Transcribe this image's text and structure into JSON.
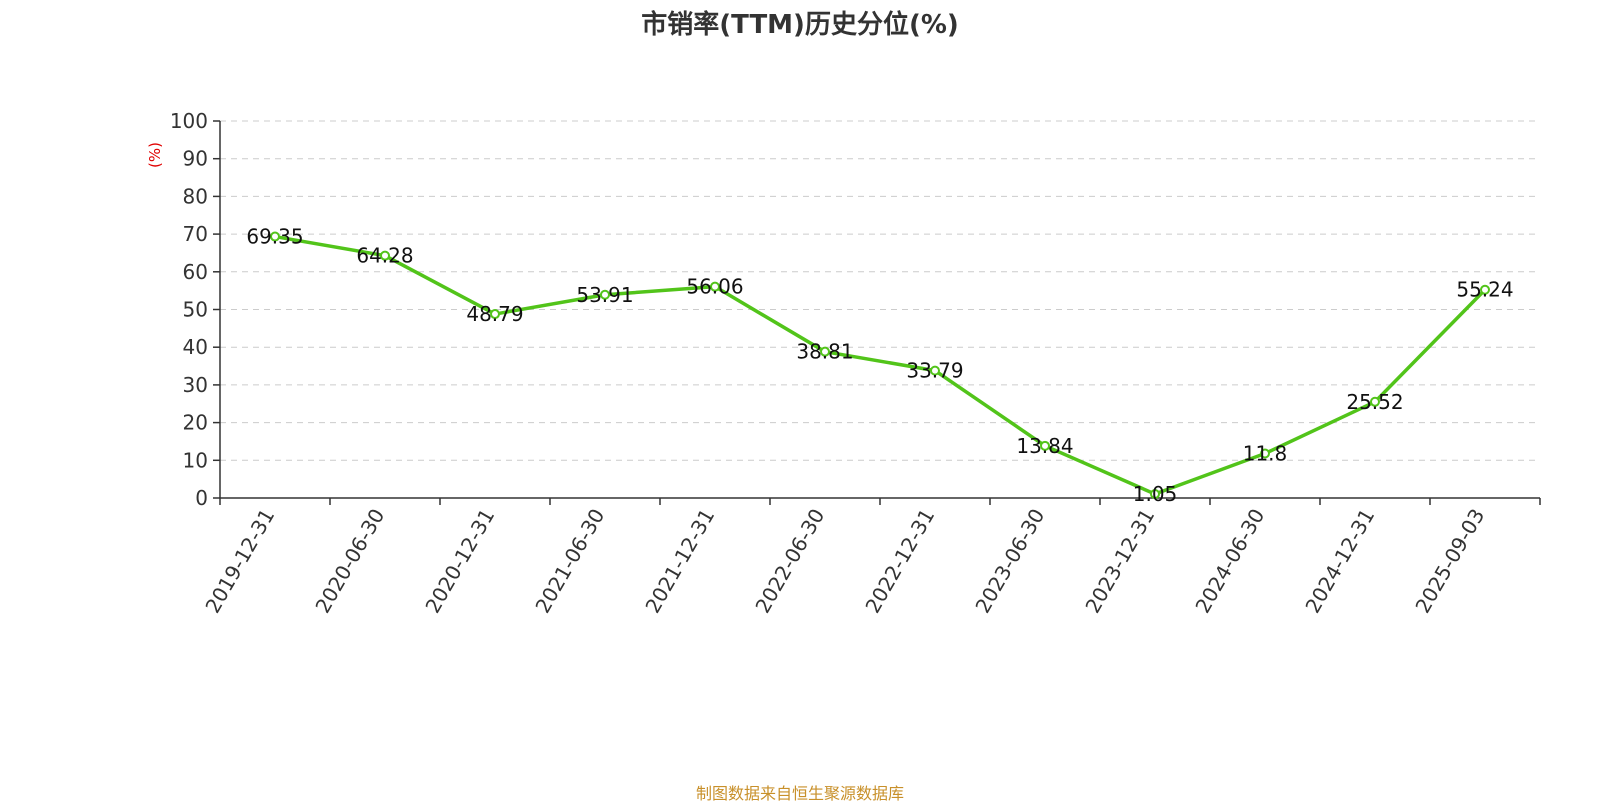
{
  "chart_data": {
    "type": "line",
    "title": "市销率(TTM)历史分位(%)",
    "ylabel": "(%)",
    "xlabel": "",
    "x": [
      "2019-12-31",
      "2020-06-30",
      "2020-12-31",
      "2021-06-30",
      "2021-12-31",
      "2022-06-30",
      "2022-12-31",
      "2023-06-30",
      "2023-12-31",
      "2024-06-30",
      "2024-12-31",
      "2025-09-03"
    ],
    "series": [
      {
        "values": [
          69.35,
          64.28,
          48.79,
          53.91,
          56.06,
          38.81,
          33.79,
          13.84,
          1.05,
          11.8,
          25.52,
          55.24
        ],
        "data_labels": [
          "69.35",
          "64.28",
          "48.79",
          "53.91",
          "56.06",
          "38.81",
          "33.79",
          "13.84",
          "1.05",
          "11.8",
          "25.52",
          "55.24"
        ],
        "color": "#52c41a"
      }
    ],
    "ylim": [
      0,
      100
    ],
    "yticks": [
      "0",
      "10",
      "20",
      "30",
      "40",
      "50",
      "60",
      "70",
      "80",
      "90",
      "100"
    ],
    "grid": true,
    "grid_style": "dashed horizontal"
  },
  "footer": {
    "source": "制图数据来自恒生聚源数据库"
  },
  "colors": {
    "line": "#52c41a",
    "axis": "#333333",
    "grid": "#cccccc",
    "ylabel": "#e00000",
    "footer": "#c8902a"
  }
}
